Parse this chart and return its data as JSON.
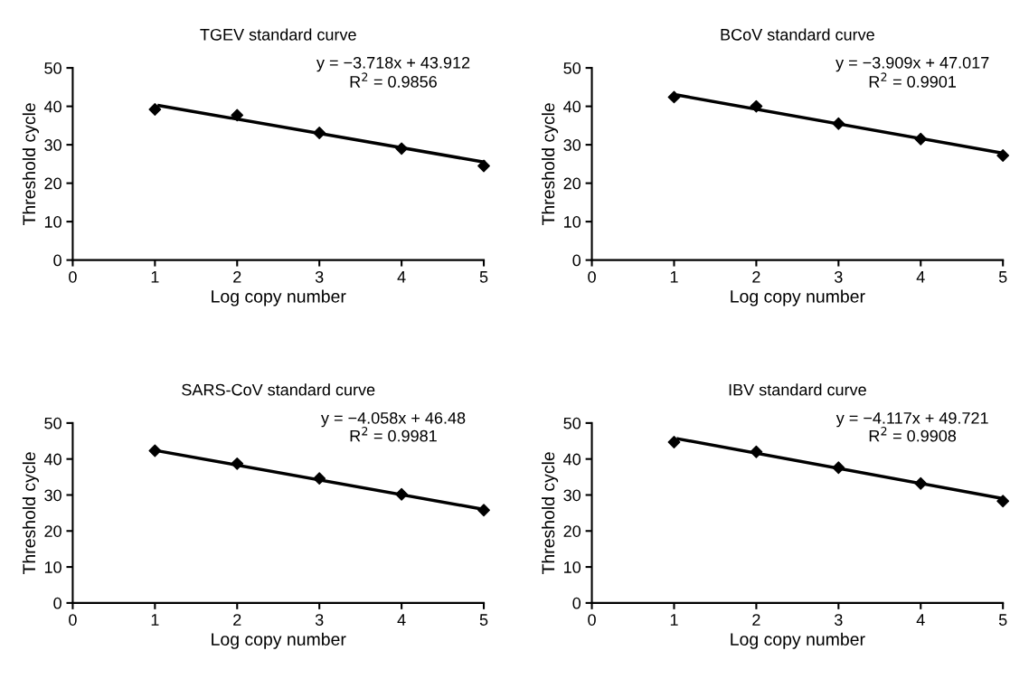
{
  "chart_data": [
    {
      "type": "scatter",
      "title": "TGEV standard curve",
      "xlabel": "Log copy number",
      "ylabel": "Threshold cycle",
      "xlim": [
        0,
        5
      ],
      "ylim": [
        0,
        50
      ],
      "xticks": [
        0,
        1,
        2,
        3,
        4,
        5
      ],
      "yticks": [
        0,
        10,
        20,
        30,
        40,
        50
      ],
      "grid": false,
      "legend": false,
      "marker": "diamond",
      "annotations": [
        "y = −3.718x + 43.912",
        "R$^{2}$ = 0.9856"
      ],
      "series": [
        {
          "color": "#000000",
          "x": [
            1,
            2,
            3,
            4,
            5
          ],
          "values": [
            39.2,
            37.7,
            33.1,
            29.0,
            24.5
          ]
        },
        {
          "type": "line",
          "color": "#000000",
          "marker": "none",
          "x": [
            1.05,
            5
          ],
          "values": [
            40.2,
            25.5
          ]
        }
      ]
    },
    {
      "type": "scatter",
      "title": "BCoV standard curve",
      "xlabel": "Log copy number",
      "ylabel": "Threshold cycle",
      "xlim": [
        0,
        5
      ],
      "ylim": [
        0,
        50
      ],
      "xticks": [
        0,
        1,
        2,
        3,
        4,
        5
      ],
      "yticks": [
        0,
        10,
        20,
        30,
        40,
        50
      ],
      "grid": false,
      "legend": false,
      "marker": "diamond",
      "annotations": [
        "y = −3.909x + 47.017",
        "R$^{2}$ = 0.9901"
      ],
      "series": [
        {
          "color": "#000000",
          "x": [
            1,
            2,
            3,
            4,
            5
          ],
          "values": [
            42.4,
            40.0,
            35.5,
            31.5,
            27.2
          ]
        },
        {
          "type": "line",
          "color": "#000000",
          "marker": "none",
          "x": [
            1.05,
            5
          ],
          "values": [
            42.9,
            27.8
          ]
        }
      ]
    },
    {
      "type": "scatter",
      "title": "SARS-CoV standard curve",
      "xlabel": "Log copy number",
      "ylabel": "Threshold cycle",
      "xlim": [
        0,
        5
      ],
      "ylim": [
        0,
        50
      ],
      "xticks": [
        0,
        1,
        2,
        3,
        4,
        5
      ],
      "yticks": [
        0,
        10,
        20,
        30,
        40,
        50
      ],
      "grid": false,
      "legend": false,
      "marker": "diamond",
      "annotations": [
        "y = −4.058x + 46.48",
        "R$^{2}$ = 0.9981"
      ],
      "series": [
        {
          "color": "#000000",
          "x": [
            1,
            2,
            3,
            4,
            5
          ],
          "values": [
            42.3,
            38.7,
            34.6,
            30.2,
            25.8
          ]
        },
        {
          "type": "line",
          "color": "#000000",
          "marker": "none",
          "x": [
            1.05,
            5
          ],
          "values": [
            42.2,
            26.0
          ]
        }
      ]
    },
    {
      "type": "scatter",
      "title": "IBV standard curve",
      "xlabel": "Log copy number",
      "ylabel": "Threshold cycle",
      "xlim": [
        0,
        5
      ],
      "ylim": [
        0,
        50
      ],
      "xticks": [
        0,
        1,
        2,
        3,
        4,
        5
      ],
      "yticks": [
        0,
        10,
        20,
        30,
        40,
        50
      ],
      "grid": false,
      "legend": false,
      "marker": "diamond",
      "annotations": [
        "y = −4.117x + 49.721",
        "R$^{2}$ = 0.9908"
      ],
      "series": [
        {
          "color": "#000000",
          "x": [
            1,
            2,
            3,
            4,
            5
          ],
          "values": [
            44.7,
            42.0,
            37.6,
            33.2,
            28.3
          ]
        },
        {
          "type": "line",
          "color": "#000000",
          "marker": "none",
          "x": [
            1.05,
            5
          ],
          "values": [
            45.6,
            29.0
          ]
        }
      ]
    }
  ]
}
